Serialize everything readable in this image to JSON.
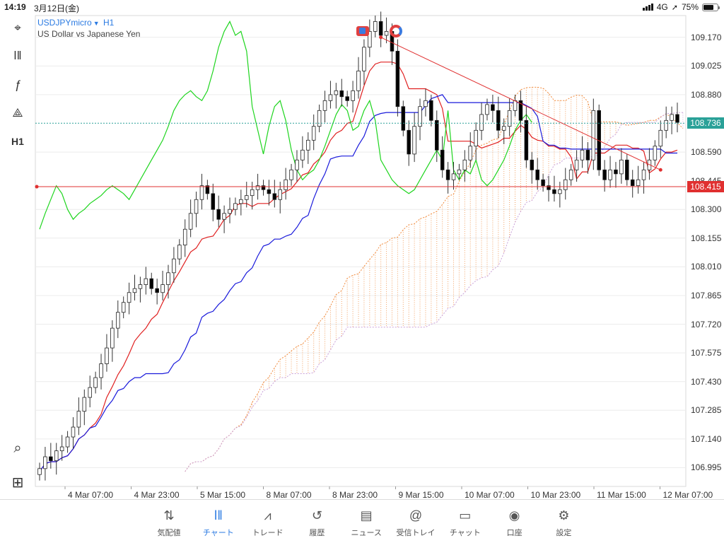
{
  "status_bar": {
    "time": "14:19",
    "date": "3月12日(金)",
    "network": "4G",
    "battery": "75%",
    "battery_level": 0.75
  },
  "toolbar": {
    "items": [
      {
        "name": "crosshair-icon",
        "glyph": "⌖"
      },
      {
        "name": "indicators-icon",
        "glyph": "ǀ‖"
      },
      {
        "name": "function-icon",
        "glyph": "ƒ"
      },
      {
        "name": "objects-icon",
        "glyph": "⟁"
      },
      {
        "name": "timeframe-button",
        "text": "H1"
      },
      {
        "name": "zoom-icon",
        "glyph": "⌕"
      },
      {
        "name": "add-icon",
        "glyph": "⊞"
      }
    ]
  },
  "symbol": {
    "name": "USDJPYmicro",
    "timeframe": "H1",
    "description": "US Dollar vs Japanese Yen"
  },
  "price_axis": {
    "ticks": [
      "109.170",
      "109.025",
      "108.880",
      "108.590",
      "108.445",
      "108.300",
      "108.155",
      "108.010",
      "107.865",
      "107.720",
      "107.575",
      "107.430",
      "107.285",
      "107.140",
      "106.995"
    ],
    "bid_tag": "108.736",
    "line_tag": "108.415"
  },
  "time_axis": {
    "ticks": [
      "4 Mar 07:00",
      "4 Mar 23:00",
      "5 Mar 15:00",
      "8 Mar 07:00",
      "8 Mar 23:00",
      "9 Mar 15:00",
      "10 Mar 07:00",
      "10 Mar 23:00",
      "11 Mar 15:00",
      "12 Mar 07:00"
    ]
  },
  "colors": {
    "bullish": "#ffffff",
    "bearish": "#000000",
    "tenkan": "#e02020",
    "kijun": "#1a1adb",
    "chikou": "#1ed51e",
    "cloud_a": "#f08a3c",
    "cloud_b": "#c9a0d8",
    "trendline": "#e03030",
    "accent": "#2a7ae2"
  },
  "chart_data": {
    "type": "candlestick",
    "ylim": [
      106.9,
      109.28
    ],
    "closes": [
      106.99,
      107.05,
      107.03,
      107.08,
      107.1,
      107.15,
      107.2,
      107.28,
      107.35,
      107.4,
      107.45,
      107.52,
      107.6,
      107.7,
      107.78,
      107.83,
      107.88,
      107.9,
      107.92,
      107.95,
      107.9,
      107.88,
      107.92,
      107.98,
      108.05,
      108.12,
      108.2,
      108.28,
      108.35,
      108.42,
      108.38,
      108.3,
      108.25,
      108.28,
      108.3,
      108.33,
      108.35,
      108.37,
      108.4,
      108.42,
      108.4,
      108.38,
      108.35,
      108.4,
      108.45,
      108.5,
      108.55,
      108.6,
      108.65,
      108.72,
      108.8,
      108.85,
      108.88,
      108.9,
      108.87,
      108.85,
      108.9,
      109.0,
      109.12,
      109.2,
      109.25,
      109.18,
      109.2,
      109.1,
      108.82,
      108.7,
      108.58,
      108.72,
      108.82,
      108.85,
      108.75,
      108.6,
      108.5,
      108.45,
      108.48,
      108.5,
      108.55,
      108.62,
      108.7,
      108.78,
      108.83,
      108.8,
      108.7,
      108.72,
      108.8,
      108.85,
      108.75,
      108.55,
      108.5,
      108.45,
      108.42,
      108.4,
      108.38,
      108.4,
      108.45,
      108.5,
      108.55,
      108.6,
      108.55,
      108.8,
      108.5,
      108.45,
      108.5,
      108.48,
      108.55,
      108.45,
      108.42,
      108.45,
      108.5,
      108.55,
      108.62,
      108.7,
      108.75,
      108.78,
      108.74
    ],
    "ichimoku": [
      "Tenkan-sen",
      "Kijun-sen",
      "Chikou Span",
      "Senkou Span A",
      "Senkou Span B"
    ],
    "trendline": {
      "from": [
        61,
        109.17
      ],
      "to": [
        111,
        108.5
      ]
    },
    "horizontal_line": 108.415,
    "bid_line": 108.736
  },
  "bottom_nav": {
    "items": [
      {
        "key": "quotes",
        "label": "気配値",
        "glyph": "⇅"
      },
      {
        "key": "chart",
        "label": "チャート",
        "glyph": "ǀ‖"
      },
      {
        "key": "trade",
        "label": "トレード",
        "glyph": "⩘"
      },
      {
        "key": "history",
        "label": "履歴",
        "glyph": "↺"
      },
      {
        "key": "news",
        "label": "ニュース",
        "glyph": "▤"
      },
      {
        "key": "mailbox",
        "label": "受信トレイ",
        "glyph": "@"
      },
      {
        "key": "chat",
        "label": "チャット",
        "glyph": "▭"
      },
      {
        "key": "account",
        "label": "口座",
        "glyph": "◉"
      },
      {
        "key": "settings",
        "label": "設定",
        "glyph": "⚙"
      }
    ],
    "active": "chart"
  }
}
